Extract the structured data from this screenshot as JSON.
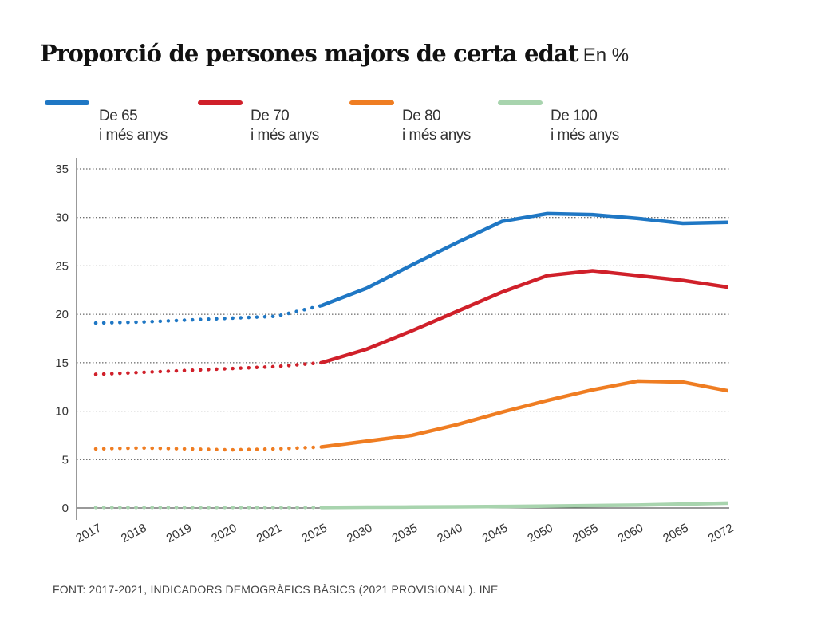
{
  "header": {
    "title": "Proporció de persones majors de certa edat",
    "unit": "En %"
  },
  "legend": [
    {
      "line1": "De 65",
      "line2": "i més anys",
      "color": "#1f77c4"
    },
    {
      "line1": "De 70",
      "line2": "i més anys",
      "color": "#d0202a"
    },
    {
      "line1": "De 80",
      "line2": "i més anys",
      "color": "#ef7d22"
    },
    {
      "line1": "De 100",
      "line2": "i més anys",
      "color": "#a8d4ae"
    }
  ],
  "chart_data": {
    "type": "line",
    "categories": [
      "2017",
      "2018",
      "2019",
      "2020",
      "2021",
      "2025",
      "2030",
      "2035",
      "2040",
      "2045",
      "2050",
      "2055",
      "2060",
      "2065",
      "2072"
    ],
    "y_ticks": [
      0,
      5,
      10,
      15,
      20,
      25,
      30,
      35
    ],
    "ylim": [
      0,
      35
    ],
    "grid": true,
    "legend_position": "top",
    "dotted_until_category": "2025",
    "series": [
      {
        "name": "De 65 i més anys",
        "color": "#1f77c4",
        "values": [
          19.1,
          19.2,
          19.4,
          19.6,
          19.8,
          20.9,
          22.7,
          25.1,
          27.4,
          29.6,
          30.4,
          30.3,
          29.9,
          29.4,
          29.5
        ]
      },
      {
        "name": "De 70 i més anys",
        "color": "#d0202a",
        "values": [
          13.8,
          14.0,
          14.2,
          14.4,
          14.6,
          15.0,
          16.4,
          18.3,
          20.3,
          22.3,
          24.0,
          24.5,
          24.0,
          23.5,
          22.8
        ]
      },
      {
        "name": "De 80 i més anys",
        "color": "#ef7d22",
        "values": [
          6.1,
          6.2,
          6.1,
          6.0,
          6.1,
          6.3,
          6.9,
          7.5,
          8.6,
          9.9,
          11.1,
          12.2,
          13.1,
          13.0,
          12.1
        ]
      },
      {
        "name": "De 100 i més anys",
        "color": "#a8d4ae",
        "values": [
          0.05,
          0.05,
          0.05,
          0.05,
          0.05,
          0.05,
          0.08,
          0.1,
          0.12,
          0.15,
          0.2,
          0.25,
          0.3,
          0.4,
          0.5
        ]
      }
    ]
  },
  "footer": {
    "source": "FONT: 2017-2021, INDICADORS DEMOGRÀFICS BÀSICS (2021 PROVISIONAL). INE"
  }
}
